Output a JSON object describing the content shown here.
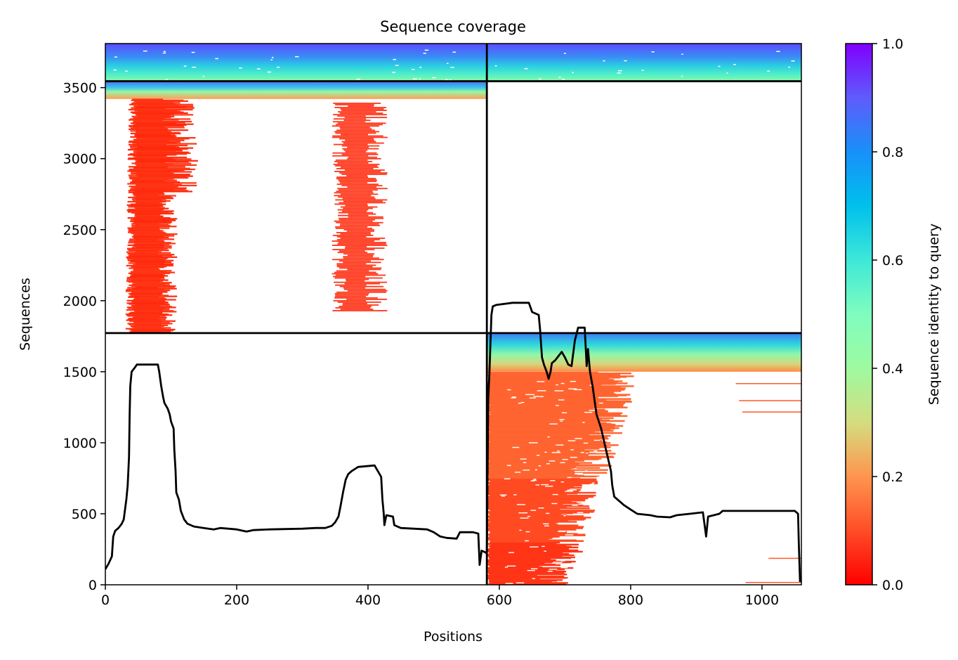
{
  "chart_data": {
    "type": "heatmap",
    "title": "Sequence coverage",
    "xlabel": "Positions",
    "ylabel": "Sequences",
    "xlim": [
      0,
      1060
    ],
    "ylim": [
      0,
      3810
    ],
    "x_ticks": [
      0,
      200,
      400,
      600,
      800,
      1000
    ],
    "y_ticks": [
      0,
      500,
      1000,
      1500,
      2000,
      2500,
      3000,
      3500
    ],
    "colorbar": {
      "label": "Sequence identity to query",
      "min": 0.0,
      "max": 1.0,
      "ticks": [
        "0.0",
        "0.2",
        "0.4",
        "0.6",
        "0.8",
        "1.0"
      ],
      "colormap": "rainbow (red to violet)"
    },
    "grid_lines": {
      "vertical_x": 581,
      "horizontal_y": [
        1772,
        3545
      ]
    },
    "blocks": [
      {
        "id": "top-left",
        "x": [
          0,
          581
        ],
        "y": [
          3545,
          3810
        ],
        "identity": "0.5-1.0"
      },
      {
        "id": "top-right",
        "x": [
          581,
          1060
        ],
        "y": [
          3545,
          3810
        ],
        "identity": "0.5-1.0"
      },
      {
        "id": "middle-left",
        "x": [
          0,
          581
        ],
        "y": [
          1772,
          3545
        ],
        "identity": "0.0-0.3"
      },
      {
        "id": "bottom-right",
        "x": [
          581,
          1060
        ],
        "y": [
          0,
          1772
        ],
        "identity": "0.0-0.9"
      }
    ],
    "coverage_line": {
      "name": "",
      "color": "#000000",
      "points": [
        [
          0,
          110
        ],
        [
          5,
          150
        ],
        [
          10,
          200
        ],
        [
          12,
          340
        ],
        [
          15,
          380
        ],
        [
          20,
          400
        ],
        [
          25,
          430
        ],
        [
          28,
          460
        ],
        [
          30,
          530
        ],
        [
          32,
          600
        ],
        [
          34,
          700
        ],
        [
          36,
          900
        ],
        [
          37,
          1200
        ],
        [
          38,
          1400
        ],
        [
          40,
          1500
        ],
        [
          45,
          1530
        ],
        [
          48,
          1550
        ],
        [
          80,
          1550
        ],
        [
          82,
          1500
        ],
        [
          85,
          1400
        ],
        [
          88,
          1320
        ],
        [
          90,
          1280
        ],
        [
          95,
          1240
        ],
        [
          98,
          1200
        ],
        [
          100,
          1150
        ],
        [
          104,
          1100
        ],
        [
          105,
          950
        ],
        [
          107,
          800
        ],
        [
          108,
          650
        ],
        [
          112,
          600
        ],
        [
          115,
          520
        ],
        [
          120,
          460
        ],
        [
          125,
          430
        ],
        [
          135,
          410
        ],
        [
          150,
          400
        ],
        [
          165,
          390
        ],
        [
          175,
          400
        ],
        [
          200,
          390
        ],
        [
          215,
          375
        ],
        [
          225,
          385
        ],
        [
          250,
          390
        ],
        [
          300,
          395
        ],
        [
          320,
          400
        ],
        [
          335,
          400
        ],
        [
          345,
          415
        ],
        [
          350,
          440
        ],
        [
          355,
          480
        ],
        [
          358,
          550
        ],
        [
          362,
          650
        ],
        [
          366,
          740
        ],
        [
          370,
          780
        ],
        [
          375,
          800
        ],
        [
          385,
          830
        ],
        [
          410,
          840
        ],
        [
          415,
          800
        ],
        [
          420,
          760
        ],
        [
          422,
          600
        ],
        [
          424,
          500
        ],
        [
          425,
          420
        ],
        [
          428,
          490
        ],
        [
          438,
          480
        ],
        [
          440,
          420
        ],
        [
          450,
          400
        ],
        [
          490,
          390
        ],
        [
          500,
          370
        ],
        [
          510,
          340
        ],
        [
          520,
          330
        ],
        [
          535,
          325
        ],
        [
          540,
          370
        ],
        [
          560,
          370
        ],
        [
          568,
          360
        ],
        [
          570,
          140
        ],
        [
          573,
          240
        ],
        [
          578,
          230
        ],
        [
          581,
          220
        ],
        [
          583,
          1300
        ],
        [
          585,
          1500
        ],
        [
          588,
          1900
        ],
        [
          590,
          1960
        ],
        [
          595,
          1970
        ],
        [
          620,
          1985
        ],
        [
          645,
          1985
        ],
        [
          650,
          1920
        ],
        [
          660,
          1900
        ],
        [
          662,
          1800
        ],
        [
          665,
          1600
        ],
        [
          668,
          1550
        ],
        [
          672,
          1500
        ],
        [
          675,
          1450
        ],
        [
          678,
          1500
        ],
        [
          680,
          1560
        ],
        [
          685,
          1580
        ],
        [
          695,
          1640
        ],
        [
          700,
          1600
        ],
        [
          705,
          1550
        ],
        [
          710,
          1540
        ],
        [
          715,
          1720
        ],
        [
          720,
          1810
        ],
        [
          730,
          1810
        ],
        [
          733,
          1540
        ],
        [
          735,
          1660
        ],
        [
          738,
          1500
        ],
        [
          742,
          1400
        ],
        [
          748,
          1200
        ],
        [
          755,
          1100
        ],
        [
          760,
          1000
        ],
        [
          765,
          900
        ],
        [
          770,
          800
        ],
        [
          772,
          700
        ],
        [
          775,
          620
        ],
        [
          780,
          600
        ],
        [
          790,
          560
        ],
        [
          800,
          530
        ],
        [
          810,
          500
        ],
        [
          830,
          490
        ],
        [
          840,
          480
        ],
        [
          860,
          475
        ],
        [
          870,
          490
        ],
        [
          890,
          500
        ],
        [
          910,
          510
        ],
        [
          915,
          340
        ],
        [
          918,
          480
        ],
        [
          935,
          500
        ],
        [
          940,
          520
        ],
        [
          1000,
          520
        ],
        [
          1050,
          520
        ],
        [
          1055,
          500
        ],
        [
          1056,
          300
        ],
        [
          1058,
          20
        ]
      ]
    }
  }
}
